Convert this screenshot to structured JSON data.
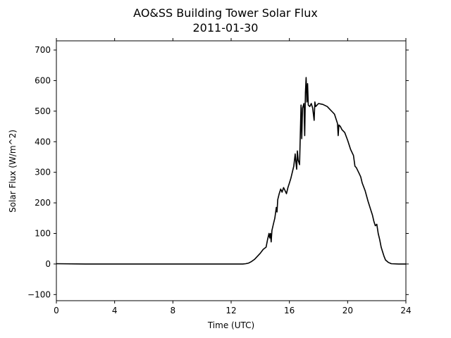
{
  "chart_data": {
    "type": "line",
    "title": "AO&SS Building Tower Solar Flux",
    "subtitle": "2011-01-30",
    "xlabel": "Time (UTC)",
    "ylabel": "Solar Flux (W/m^2)",
    "xlim": [
      0,
      24
    ],
    "ylim": [
      -120,
      730
    ],
    "xticks": [
      0,
      4,
      8,
      12,
      16,
      20,
      24
    ],
    "yticks": [
      -100,
      0,
      100,
      200,
      300,
      400,
      500,
      600,
      700
    ],
    "grid": false,
    "legend": "none",
    "series": [
      {
        "color": "#000000",
        "points": [
          [
            0,
            1
          ],
          [
            2,
            0
          ],
          [
            4,
            0
          ],
          [
            6,
            0
          ],
          [
            8,
            0
          ],
          [
            10,
            0
          ],
          [
            12,
            0
          ],
          [
            12.8,
            0
          ],
          [
            13.0,
            1
          ],
          [
            13.2,
            3
          ],
          [
            13.4,
            8
          ],
          [
            13.6,
            15
          ],
          [
            13.8,
            25
          ],
          [
            14.0,
            35
          ],
          [
            14.2,
            48
          ],
          [
            14.4,
            55
          ],
          [
            14.5,
            80
          ],
          [
            14.6,
            100
          ],
          [
            14.65,
            85
          ],
          [
            14.7,
            100
          ],
          [
            14.75,
            72
          ],
          [
            14.8,
            110
          ],
          [
            14.9,
            130
          ],
          [
            15.0,
            150
          ],
          [
            15.1,
            185
          ],
          [
            15.15,
            170
          ],
          [
            15.2,
            210
          ],
          [
            15.3,
            230
          ],
          [
            15.4,
            245
          ],
          [
            15.5,
            235
          ],
          [
            15.6,
            250
          ],
          [
            15.7,
            240
          ],
          [
            15.8,
            230
          ],
          [
            15.9,
            250
          ],
          [
            16.0,
            265
          ],
          [
            16.1,
            280
          ],
          [
            16.2,
            300
          ],
          [
            16.3,
            320
          ],
          [
            16.4,
            360
          ],
          [
            16.45,
            330
          ],
          [
            16.5,
            310
          ],
          [
            16.55,
            370
          ],
          [
            16.6,
            340
          ],
          [
            16.7,
            325
          ],
          [
            16.8,
            520
          ],
          [
            16.85,
            410
          ],
          [
            16.9,
            510
          ],
          [
            17.0,
            525
          ],
          [
            17.05,
            420
          ],
          [
            17.1,
            560
          ],
          [
            17.15,
            610
          ],
          [
            17.2,
            530
          ],
          [
            17.25,
            590
          ],
          [
            17.3,
            520
          ],
          [
            17.4,
            515
          ],
          [
            17.5,
            525
          ],
          [
            17.6,
            510
          ],
          [
            17.7,
            470
          ],
          [
            17.75,
            530
          ],
          [
            17.8,
            515
          ],
          [
            18.0,
            525
          ],
          [
            18.3,
            522
          ],
          [
            18.6,
            515
          ],
          [
            18.8,
            505
          ],
          [
            19.0,
            495
          ],
          [
            19.1,
            490
          ],
          [
            19.2,
            475
          ],
          [
            19.3,
            460
          ],
          [
            19.35,
            420
          ],
          [
            19.4,
            455
          ],
          [
            19.5,
            450
          ],
          [
            19.6,
            440
          ],
          [
            19.8,
            430
          ],
          [
            20.0,
            405
          ],
          [
            20.2,
            375
          ],
          [
            20.4,
            355
          ],
          [
            20.5,
            320
          ],
          [
            20.6,
            315
          ],
          [
            20.8,
            295
          ],
          [
            20.9,
            285
          ],
          [
            21.0,
            265
          ],
          [
            21.2,
            240
          ],
          [
            21.4,
            205
          ],
          [
            21.6,
            175
          ],
          [
            21.7,
            160
          ],
          [
            21.8,
            140
          ],
          [
            21.9,
            125
          ],
          [
            22.0,
            130
          ],
          [
            22.1,
            100
          ],
          [
            22.2,
            80
          ],
          [
            22.3,
            55
          ],
          [
            22.4,
            40
          ],
          [
            22.5,
            25
          ],
          [
            22.6,
            13
          ],
          [
            22.8,
            5
          ],
          [
            23.0,
            1
          ],
          [
            23.5,
            0
          ],
          [
            24,
            0
          ]
        ]
      }
    ]
  }
}
